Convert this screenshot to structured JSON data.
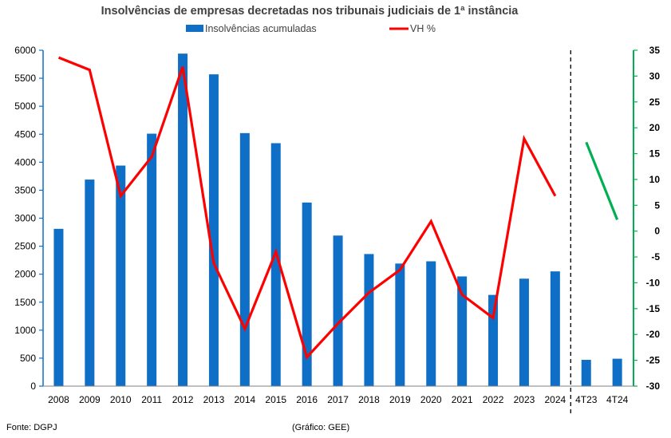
{
  "chart_data": {
    "type": "bar",
    "title": "Insolvências de empresas decretadas nos tribunais judiciais de 1ª instância",
    "categories": [
      "2008",
      "2009",
      "2010",
      "2011",
      "2012",
      "2013",
      "2014",
      "2015",
      "2016",
      "2017",
      "2018",
      "2019",
      "2020",
      "2021",
      "2022",
      "2023",
      "2024",
      "4T23",
      "4T24"
    ],
    "series": [
      {
        "name": "Insolvências acumuladas",
        "kind": "bar",
        "axis": "left",
        "color": "#0f6fc6",
        "values": [
          2810,
          3690,
          3940,
          4510,
          5940,
          5570,
          4520,
          4340,
          3280,
          2690,
          2360,
          2190,
          2230,
          1960,
          1630,
          1920,
          2050,
          470,
          490
        ]
      },
      {
        "name": "VH %",
        "kind": "line",
        "axis": "right",
        "color": "#ff0000",
        "values": [
          33.6,
          31.2,
          6.8,
          14.4,
          31.8,
          -6.2,
          -18.9,
          -4.0,
          -24.4,
          -17.9,
          -11.9,
          -7.5,
          1.9,
          -12.3,
          -16.8,
          17.9,
          6.8,
          null,
          null
        ]
      },
      {
        "name": "",
        "kind": "line",
        "axis": "right",
        "color": "#00b050",
        "values": [
          null,
          null,
          null,
          null,
          null,
          null,
          null,
          null,
          null,
          null,
          null,
          null,
          null,
          null,
          null,
          null,
          null,
          17.2,
          2.2
        ]
      }
    ],
    "y_left": {
      "min": 0,
      "max": 6000,
      "step": 500,
      "ticks": [
        "0",
        "500",
        "1000",
        "1500",
        "2000",
        "2500",
        "3000",
        "3500",
        "4000",
        "4500",
        "5000",
        "5500",
        "6000"
      ]
    },
    "y_right": {
      "min": -30,
      "max": 35,
      "step": 5,
      "ticks": [
        "-30",
        "-25",
        "-20",
        "-15",
        "-10",
        "-5",
        "0",
        "5",
        "10",
        "15",
        "20",
        "25",
        "30",
        "35"
      ]
    },
    "left_axis_color": "#0f6fc6",
    "right_axis_color": "#00b050",
    "separator": "dashed line between 2024 and 4T23",
    "grid": false,
    "legend_position": "top"
  },
  "footer": {
    "source": "Fonte: DGPJ",
    "credit": "(Gráfico: GEE)"
  }
}
